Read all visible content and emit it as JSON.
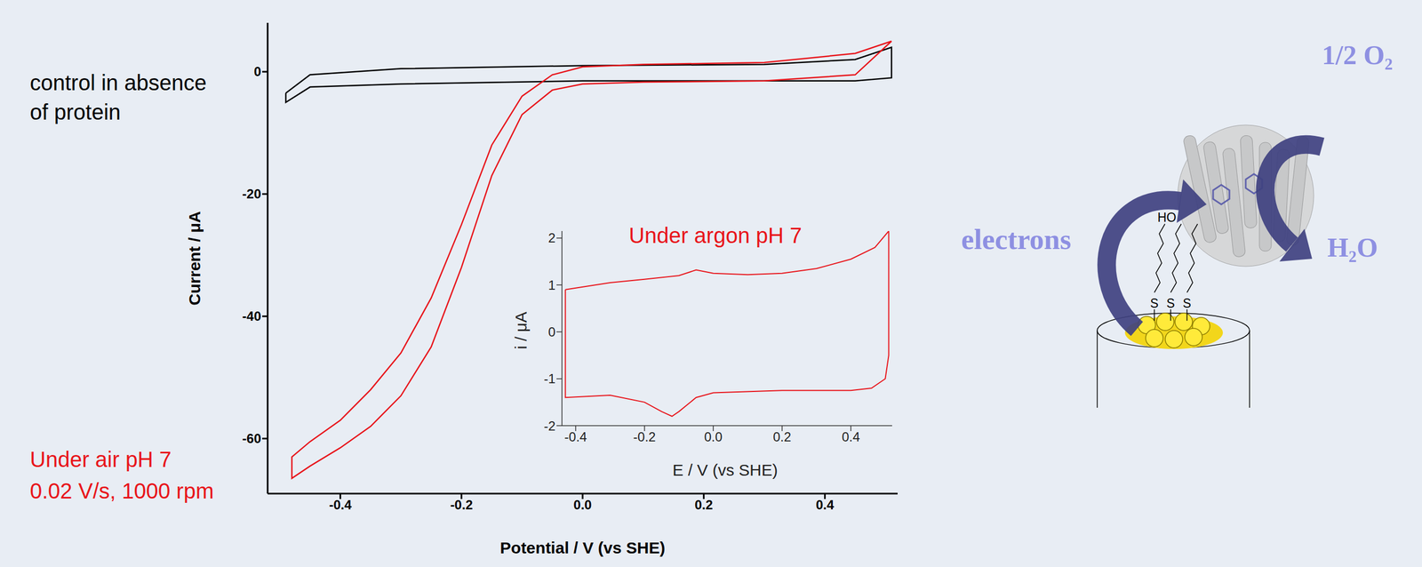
{
  "chart_data": [
    {
      "type": "line",
      "x_label": "Potential / V (vs SHE)",
      "y_label": "Current / μA",
      "xlim": [
        -0.52,
        0.52
      ],
      "xticks": [
        -0.4,
        -0.2,
        {
          "value": 0,
          "label": "0.0"
        },
        0.2,
        0.4
      ],
      "ylim": [
        -69,
        8
      ],
      "yticks": [
        -60,
        -40,
        -20,
        0
      ],
      "grid": false,
      "annotations": [
        {
          "text": "control in absence of protein",
          "color": "#000000"
        },
        {
          "text": "Under air pH 7",
          "color": "#e8141a"
        },
        {
          "text": "0.02 V/s, 1000 rpm",
          "color": "#e8141a"
        }
      ],
      "series": [
        {
          "color": "#000000",
          "x": [
            -0.49,
            -0.45,
            -0.3,
            0,
            0.3,
            0.45,
            0.51,
            0.51,
            0.45,
            0,
            -0.3,
            -0.45,
            -0.49,
            -0.49
          ],
          "values": [
            -3.5,
            -0.5,
            0.5,
            1,
            1.2,
            2,
            4,
            -1,
            -1.5,
            -1.5,
            -2,
            -2.5,
            -5,
            -3.5
          ]
        },
        {
          "color": "#e8141a",
          "x": [
            0.51,
            0.45,
            0.3,
            0.1,
            0,
            -0.05,
            -0.1,
            -0.15,
            -0.2,
            -0.25,
            -0.3,
            -0.35,
            -0.4,
            -0.45,
            -0.48,
            -0.48,
            -0.45,
            -0.4,
            -0.35,
            -0.3,
            -0.25,
            -0.2,
            -0.15,
            -0.1,
            -0.05,
            0,
            0.1,
            0.3,
            0.45,
            0.51
          ],
          "values": [
            5,
            -0.5,
            -1.5,
            -1.7,
            -2,
            -3,
            -7,
            -17,
            -32,
            -45,
            -53,
            -58,
            -61.5,
            -64.5,
            -66.5,
            -63,
            -60.5,
            -57,
            -52,
            -46,
            -37,
            -25,
            -12,
            -4,
            -0.5,
            0.8,
            1.2,
            1.5,
            3,
            5
          ]
        }
      ]
    },
    {
      "type": "line",
      "title": "Under argon pH 7",
      "color": "#e8141a",
      "x_label": "E / V (vs SHE)",
      "y_label": "i / μA",
      "xlim": [
        -0.44,
        0.52
      ],
      "xticks": [
        -0.4,
        -0.2,
        {
          "value": 0,
          "label": "0.0"
        },
        0.2,
        0.4
      ],
      "ylim": [
        -2,
        2.15
      ],
      "yticks": [
        -2,
        -1,
        0,
        1,
        2
      ],
      "grid": false,
      "series": [
        {
          "color": "#e8141a",
          "x": [
            -0.43,
            -0.3,
            -0.2,
            -0.1,
            -0.05,
            0,
            0.1,
            0.2,
            0.3,
            0.4,
            0.47,
            0.51,
            0.51,
            0.5,
            0.46,
            0.4,
            0.2,
            0,
            -0.05,
            -0.1,
            -0.12,
            -0.15,
            -0.2,
            -0.3,
            -0.43,
            -0.43
          ],
          "values": [
            0.9,
            1.05,
            1.12,
            1.2,
            1.32,
            1.25,
            1.22,
            1.25,
            1.35,
            1.55,
            1.8,
            2.15,
            -0.5,
            -1.0,
            -1.2,
            -1.25,
            -1.25,
            -1.3,
            -1.4,
            -1.7,
            -1.8,
            -1.7,
            -1.5,
            -1.35,
            -1.4,
            0.9
          ]
        }
      ]
    }
  ],
  "diagram": {
    "labels": {
      "electrons": "electrons",
      "oxygen": "1/2 O₂",
      "water": "H₂O",
      "hydroxyl": "HO",
      "sulfur": [
        "S",
        "S",
        "S"
      ]
    }
  }
}
